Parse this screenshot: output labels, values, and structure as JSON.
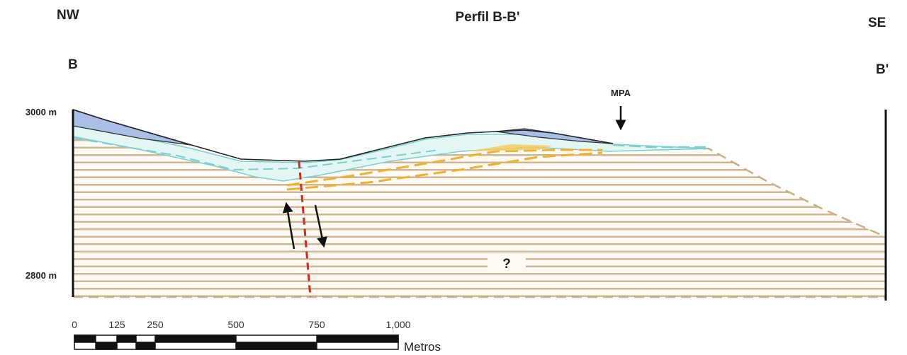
{
  "header": {
    "left": "NW",
    "title": "Perfil B-B'",
    "right": "SE"
  },
  "points": {
    "left": "B",
    "right": "B'"
  },
  "labels": {
    "mpa": "MPA",
    "unknown": "?"
  },
  "elevations": [
    "3000 m",
    "2800 m"
  ],
  "scale": {
    "ticks": [
      "0",
      "125",
      "250",
      "500",
      "750",
      "1,000"
    ],
    "unit": "Metros"
  }
}
